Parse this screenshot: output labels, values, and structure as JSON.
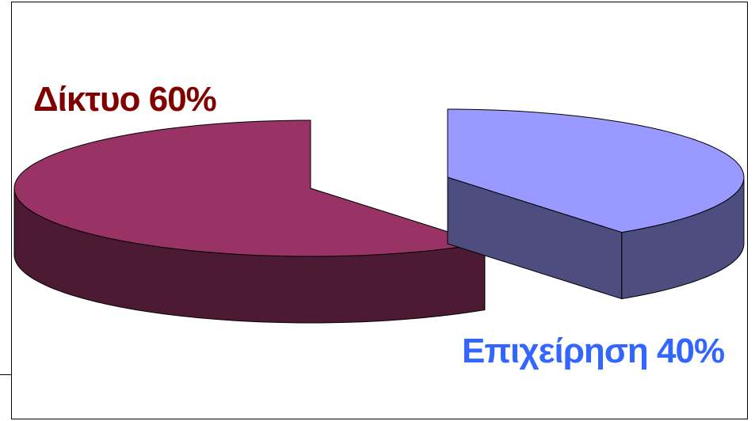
{
  "chart_data": {
    "type": "pie",
    "style": "3d-exploded",
    "slices": [
      {
        "label": "Δίκτυο 60%",
        "value": 60,
        "top_color": "#993366",
        "side_color": "#4D1A33",
        "label_color": "#800000"
      },
      {
        "label": "Επιχείρηση 40%",
        "value": 40,
        "top_color": "#9999FF",
        "side_color": "#4D4D80",
        "label_color": "#3366FF"
      }
    ],
    "legend": "none"
  }
}
